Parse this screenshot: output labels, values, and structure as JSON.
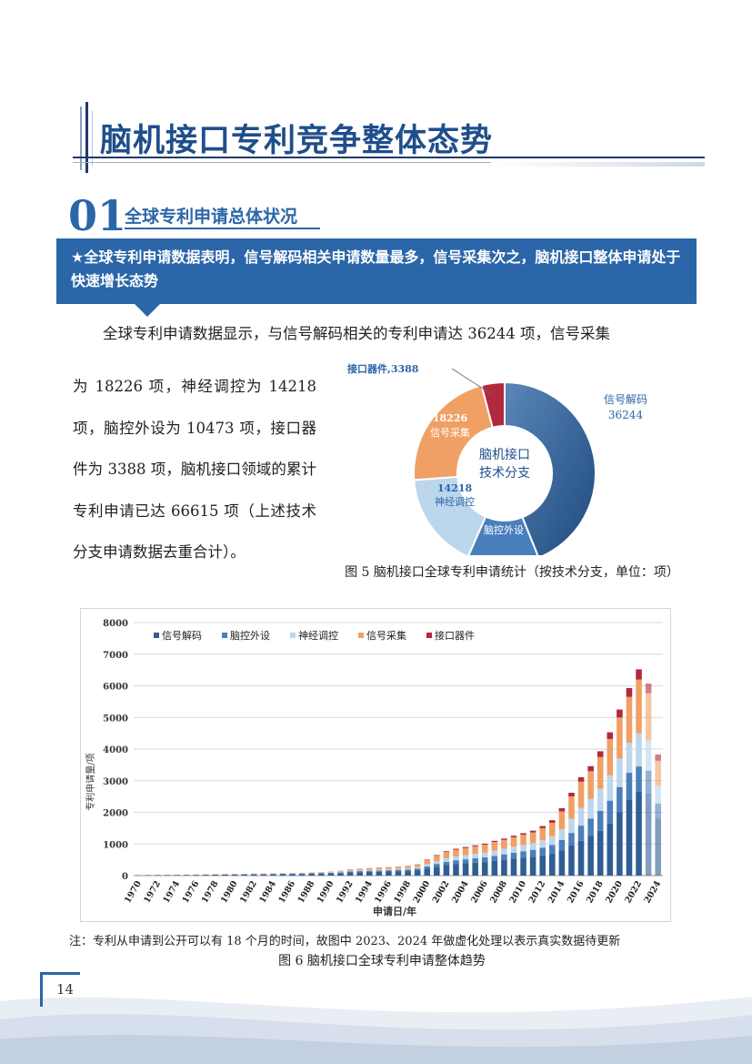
{
  "header": {
    "title": "脑机接口专利竞争整体态势"
  },
  "section": {
    "number": "01",
    "title": "全球专利申请总体状况"
  },
  "banner": {
    "text": "★全球专利申请数据表明，信号解码相关申请数量最多，信号采集次之，脑机接口整体申请处于快速增长态势"
  },
  "body": {
    "para1": "全球专利申请数据显示，与信号解码相关的专利申请达 36244 项，信号采集",
    "para2": "为 18226 项，神经调控为 14218 项，脑控外设为 10473 项，接口器件为 3388 项，脑机接口领域的累计专利申请已达  66615  项（上述技术分支申请数据去重合计）。"
  },
  "donut": {
    "center_label_1": "脑机接口",
    "center_label_2": "技术分支",
    "segments": [
      {
        "name": "信号解码",
        "value": 36244,
        "color": "#2f5d94"
      },
      {
        "name": "脑控外设",
        "value": 10473,
        "color": "#4a7fbd"
      },
      {
        "name": "神经调控",
        "value": 14218,
        "color": "#bcd6ec"
      },
      {
        "name": "信号采集",
        "value": 18226,
        "color": "#f0a064"
      },
      {
        "name": "接口器件",
        "value": 3388,
        "color": "#b2283e"
      }
    ],
    "label_interface": "接口器件,3388",
    "label_decode_name": "信号解码",
    "label_decode_value": "36244",
    "label_acq_value": "18226",
    "label_acq_name": "信号采集",
    "label_neuro_value": "14218",
    "label_neuro_name": "神经调控",
    "label_periph_value": "10473",
    "label_periph_name": "脑控外设"
  },
  "fig5_caption": "图 5  脑机接口全球专利申请统计（按技术分支，单位：项）",
  "chart_data": {
    "type": "bar",
    "stacked": true,
    "xlabel": "申请日/年",
    "ylabel": "专利申请量/项",
    "ylim": [
      0,
      8000
    ],
    "yticks": [
      0,
      1000,
      2000,
      3000,
      4000,
      5000,
      6000,
      7000,
      8000
    ],
    "grid": true,
    "legend_position": "top-left",
    "x_tick_labels": [
      "1970",
      "1972",
      "1974",
      "1976",
      "1978",
      "1980",
      "1982",
      "1984",
      "1986",
      "1988",
      "1990",
      "1992",
      "1994",
      "1996",
      "1998",
      "2000",
      "2002",
      "2004",
      "2006",
      "2008",
      "2010",
      "2012",
      "2014",
      "2016",
      "2018",
      "2020",
      "2022",
      "2024"
    ],
    "categories": [
      1970,
      1971,
      1972,
      1973,
      1974,
      1975,
      1976,
      1977,
      1978,
      1979,
      1980,
      1981,
      1982,
      1983,
      1984,
      1985,
      1986,
      1987,
      1988,
      1989,
      1990,
      1991,
      1992,
      1993,
      1994,
      1995,
      1996,
      1997,
      1998,
      1999,
      2000,
      2001,
      2002,
      2003,
      2004,
      2005,
      2006,
      2007,
      2008,
      2009,
      2010,
      2011,
      2012,
      2013,
      2014,
      2015,
      2016,
      2017,
      2018,
      2019,
      2020,
      2021,
      2022,
      2023,
      2024
    ],
    "faded_from_index": 53,
    "series": [
      {
        "name": "信号解码",
        "color": "#2f5d94",
        "values": [
          10,
          12,
          14,
          16,
          18,
          20,
          22,
          25,
          28,
          30,
          32,
          35,
          40,
          40,
          42,
          45,
          48,
          52,
          60,
          65,
          70,
          80,
          100,
          110,
          120,
          125,
          130,
          140,
          150,
          170,
          220,
          280,
          330,
          370,
          390,
          410,
          430,
          460,
          500,
          540,
          570,
          600,
          640,
          700,
          800,
          950,
          1100,
          1250,
          1420,
          1650,
          2000,
          2400,
          2650,
          2600,
          1800
        ]
      },
      {
        "name": "脑控外设",
        "color": "#4a7fbd",
        "values": [
          3,
          3,
          4,
          4,
          5,
          5,
          6,
          6,
          7,
          8,
          8,
          9,
          10,
          10,
          11,
          12,
          13,
          14,
          16,
          18,
          20,
          24,
          30,
          32,
          35,
          38,
          40,
          42,
          45,
          52,
          70,
          90,
          105,
          115,
          125,
          135,
          145,
          160,
          170,
          185,
          200,
          215,
          240,
          270,
          330,
          400,
          480,
          550,
          630,
          720,
          800,
          850,
          800,
          720,
          480
        ]
      },
      {
        "name": "神经调控",
        "color": "#bcd6ec",
        "values": [
          2,
          2,
          3,
          3,
          3,
          4,
          4,
          5,
          5,
          6,
          6,
          7,
          8,
          8,
          9,
          10,
          10,
          11,
          13,
          14,
          16,
          20,
          26,
          28,
          30,
          32,
          34,
          36,
          38,
          45,
          70,
          90,
          110,
          120,
          130,
          140,
          150,
          170,
          180,
          190,
          200,
          210,
          240,
          270,
          340,
          450,
          560,
          620,
          700,
          800,
          900,
          950,
          1050,
          950,
          550
        ]
      },
      {
        "name": "信号采集",
        "color": "#f0a064",
        "values": [
          3,
          3,
          3,
          4,
          4,
          5,
          5,
          6,
          6,
          7,
          8,
          9,
          10,
          10,
          11,
          12,
          13,
          14,
          16,
          18,
          22,
          30,
          40,
          45,
          50,
          55,
          58,
          62,
          68,
          80,
          130,
          170,
          200,
          215,
          230,
          240,
          250,
          270,
          280,
          300,
          320,
          340,
          380,
          430,
          560,
          700,
          830,
          880,
          1000,
          1150,
          1300,
          1450,
          1700,
          1500,
          800
        ]
      },
      {
        "name": "接口器件",
        "color": "#b2283e",
        "values": [
          0,
          0,
          0,
          0,
          0,
          0,
          0,
          0,
          0,
          0,
          0,
          0,
          0,
          0,
          0,
          0,
          0,
          0,
          0,
          0,
          0,
          2,
          3,
          3,
          4,
          4,
          5,
          5,
          6,
          8,
          15,
          20,
          25,
          28,
          30,
          32,
          35,
          38,
          42,
          46,
          50,
          55,
          65,
          80,
          100,
          120,
          140,
          160,
          180,
          210,
          250,
          280,
          320,
          300,
          200
        ]
      }
    ]
  },
  "note": "注：专利从申请到公开可以有 18 个月的时间，故图中 2023、2024 年做虚化处理以表示真实数据待更新",
  "fig6_caption": "图 6  脑机接口全球专利申请整体趋势",
  "footer": {
    "page_number": "14"
  }
}
